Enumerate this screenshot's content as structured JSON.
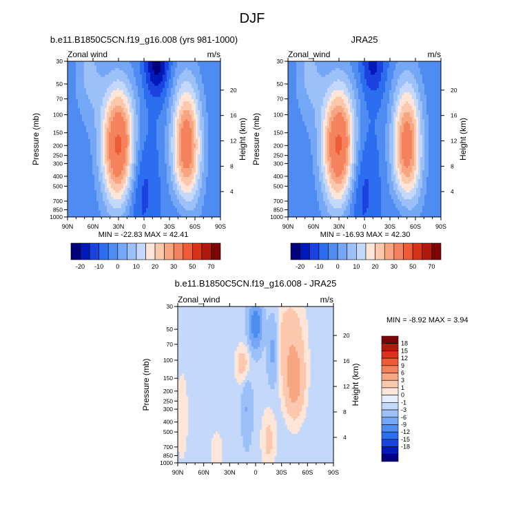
{
  "page": {
    "title": "DJF"
  },
  "colors": {
    "ramp_main": [
      "#00007d",
      "#0019b8",
      "#1a43e0",
      "#2d6ef0",
      "#4e8cf2",
      "#74a7f5",
      "#9cc0f8",
      "#c4d8fb",
      "#e5eefd",
      "#fde6d8",
      "#fbc8ad",
      "#f8a582",
      "#f4825d",
      "#ee5c37",
      "#d8321b",
      "#b01a0c",
      "#7d0505"
    ],
    "ramp_diff": [
      "#00007d",
      "#0019b8",
      "#1a43e0",
      "#2d6ef0",
      "#4e8cf2",
      "#74a7f5",
      "#9cc0f8",
      "#c4d8fb",
      "#e5eefd",
      "#fde6d8",
      "#fbc8ad",
      "#f8a582",
      "#f4825d",
      "#ee5c37",
      "#d8321b",
      "#b01a0c",
      "#7d0505"
    ]
  },
  "chart_data": [
    {
      "type": "heatmap",
      "title": "b.e11.B1850C5CN.f19_g16.008 (yrs 981-1000)",
      "left_label": "Zonal wind",
      "right_label": "m/s",
      "xlabel": "",
      "ylabel": "Pressure (mb)",
      "y2label": "Height (km)",
      "xticks": [
        "90N",
        "60N",
        "30N",
        "0",
        "30S",
        "60S",
        "90S"
      ],
      "xlim": [
        90,
        -90
      ],
      "yticks": [
        "30",
        "50",
        "70",
        "100",
        "150",
        "200",
        "250",
        "300",
        "400",
        "500",
        "700",
        "850",
        "1000"
      ],
      "ytick_values": [
        30,
        50,
        70,
        100,
        150,
        200,
        250,
        300,
        400,
        500,
        700,
        850,
        1000
      ],
      "ylim": [
        30,
        1000
      ],
      "y2ticks": [
        "20",
        "16",
        "12",
        "8",
        "4"
      ],
      "y2tick_values": [
        20,
        16,
        12,
        8,
        4
      ],
      "stats": "MIN = -22.83  MAX = 42.41",
      "min": -22.83,
      "max": 42.41,
      "contour_levels": [
        -20,
        -15,
        -10,
        -5,
        0,
        5,
        10,
        15,
        20,
        25,
        30,
        40,
        50,
        60,
        70
      ],
      "colorbar_labels": [
        "-20",
        "-10",
        "0",
        "10",
        "20",
        "30",
        "50",
        "70"
      ],
      "jets": [
        {
          "lat": 30,
          "pressure": 200,
          "peak": 42.41
        },
        {
          "lat": -50,
          "pressure": 200,
          "peak": 36
        }
      ],
      "minimum": {
        "lat": -15,
        "pressure": 30,
        "value": -22.83
      }
    },
    {
      "type": "heatmap",
      "title": "JRA25",
      "left_label": "Zonal_wind",
      "right_label": "m/s",
      "xlabel": "",
      "ylabel": "Pressure (mb)",
      "y2label": "Height (km)",
      "xticks": [
        "90N",
        "60N",
        "30N",
        "0",
        "30S",
        "60S",
        "90S"
      ],
      "xlim": [
        90,
        -90
      ],
      "yticks": [
        "30",
        "50",
        "70",
        "100",
        "150",
        "200",
        "250",
        "300",
        "400",
        "500",
        "700",
        "850",
        "1000"
      ],
      "ytick_values": [
        30,
        50,
        70,
        100,
        150,
        200,
        250,
        300,
        400,
        500,
        700,
        850,
        1000
      ],
      "ylim": [
        30,
        1000
      ],
      "y2ticks": [
        "20",
        "16",
        "12",
        "8",
        "4"
      ],
      "y2tick_values": [
        20,
        16,
        12,
        8,
        4
      ],
      "stats": "MIN = -16.93  MAX = 42.30",
      "min": -16.93,
      "max": 42.3,
      "contour_levels": [
        -20,
        -15,
        -10,
        -5,
        0,
        5,
        10,
        15,
        20,
        25,
        30,
        40,
        50,
        60,
        70
      ],
      "colorbar_labels": [
        "-20",
        "-10",
        "0",
        "10",
        "20",
        "30",
        "50",
        "70"
      ],
      "jets": [
        {
          "lat": 30,
          "pressure": 200,
          "peak": 42.3
        },
        {
          "lat": -50,
          "pressure": 200,
          "peak": 35
        }
      ],
      "minimum": {
        "lat": -10,
        "pressure": 30,
        "value": -16.93
      }
    },
    {
      "type": "heatmap",
      "title": "b.e11.B1850C5CN.f19_g16.008 - JRA25",
      "left_label": "Zonal_wind",
      "right_label": "m/s",
      "xlabel": "",
      "ylabel": "Pressure (mb)",
      "y2label": "Height (km)",
      "xticks": [
        "90N",
        "60N",
        "30N",
        "0",
        "30S",
        "60S",
        "90S"
      ],
      "xlim": [
        90,
        -90
      ],
      "yticks": [
        "30",
        "50",
        "70",
        "100",
        "150",
        "200",
        "250",
        "300",
        "400",
        "500",
        "700",
        "850",
        "1000"
      ],
      "ytick_values": [
        30,
        50,
        70,
        100,
        150,
        200,
        250,
        300,
        400,
        500,
        700,
        850,
        1000
      ],
      "ylim": [
        30,
        1000
      ],
      "y2ticks": [
        "20",
        "16",
        "12",
        "8",
        "4"
      ],
      "y2tick_values": [
        20,
        16,
        12,
        8,
        4
      ],
      "stats": "MIN = -8.92  MAX = 3.94",
      "min": -8.92,
      "max": 3.94,
      "contour_levels": [
        -18,
        -15,
        -12,
        -9,
        -6,
        -3,
        -1,
        0,
        1,
        3,
        6,
        9,
        12,
        15,
        18
      ],
      "colorbar_labels": [
        "18",
        "15",
        "12",
        "9",
        "6",
        "3",
        "1",
        "0",
        "-1",
        "-3",
        "-6",
        "-9",
        "-12",
        "-15",
        "-18"
      ],
      "features": [
        {
          "lat": -45,
          "pressure": 170,
          "value": 3.94
        },
        {
          "lat": 0,
          "pressure": 45,
          "value": -8.92
        }
      ]
    }
  ]
}
